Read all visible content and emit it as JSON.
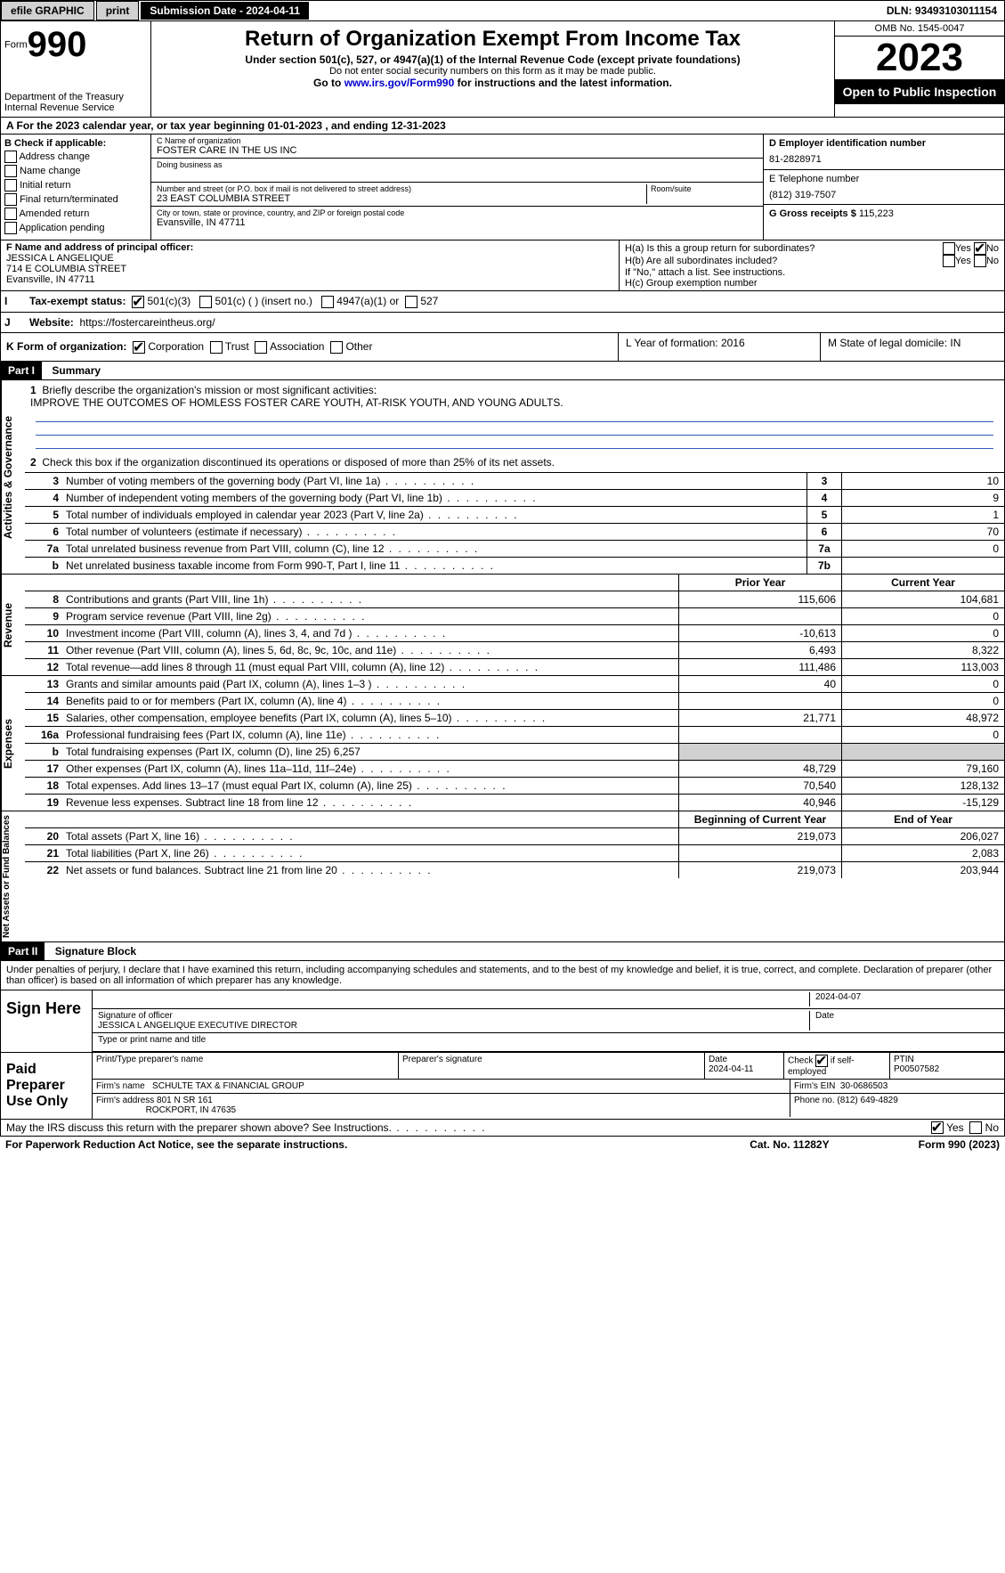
{
  "topbar": {
    "efile": "efile GRAPHIC",
    "print": "print",
    "submission": "Submission Date - 2024-04-11",
    "dln": "DLN: 93493103011154"
  },
  "header": {
    "form_word": "Form",
    "form_number": "990",
    "dept": "Department of the Treasury",
    "irs": "Internal Revenue Service",
    "title": "Return of Organization Exempt From Income Tax",
    "subtitle": "Under section 501(c), 527, or 4947(a)(1) of the Internal Revenue Code (except private foundations)",
    "note1": "Do not enter social security numbers on this form as it may be made public.",
    "note2_pre": "Go to ",
    "note2_link": "www.irs.gov/Form990",
    "note2_post": " for instructions and the latest information.",
    "omb": "OMB No. 1545-0047",
    "year": "2023",
    "open": "Open to Public Inspection"
  },
  "row_a": "A For the 2023 calendar year, or tax year beginning 01-01-2023    , and ending 12-31-2023",
  "section_b": {
    "title": "B Check if applicable:",
    "opts": [
      "Address change",
      "Name change",
      "Initial return",
      "Final return/terminated",
      "Amended return",
      "Application pending"
    ]
  },
  "section_c": {
    "name_label": "C Name of organization",
    "name": "FOSTER CARE IN THE US INC",
    "dba_label": "Doing business as",
    "addr_label": "Number and street (or P.O. box if mail is not delivered to street address)",
    "addr": "23 EAST COLUMBIA STREET",
    "room_label": "Room/suite",
    "city_label": "City or town, state or province, country, and ZIP or foreign postal code",
    "city": "Evansville, IN  47711"
  },
  "section_d": {
    "label": "D Employer identification number",
    "value": "81-2828971"
  },
  "section_e": {
    "label": "E Telephone number",
    "value": "(812) 319-7507"
  },
  "section_g": {
    "label": "G Gross receipts $",
    "value": "115,223"
  },
  "section_f": {
    "label": "F  Name and address of principal officer:",
    "name": "JESSICA L ANGELIQUE",
    "addr1": "714 E COLUMBIA STREET",
    "addr2": "Evansville, IN  47711"
  },
  "section_h": {
    "a": "H(a)  Is this a group return for subordinates?",
    "b": "H(b)  Are all subordinates included?",
    "b_note": "If \"No,\" attach a list. See instructions.",
    "c": "H(c)  Group exemption number",
    "yes": "Yes",
    "no": "No"
  },
  "row_i": {
    "label": "Tax-exempt status:",
    "opt1": "501(c)(3)",
    "opt2": "501(c) (  ) (insert no.)",
    "opt3": "4947(a)(1) or",
    "opt4": "527"
  },
  "row_j": {
    "label": "Website:",
    "value": "https://fostercareintheus.org/"
  },
  "row_k": {
    "label": "K Form of organization:",
    "opts": [
      "Corporation",
      "Trust",
      "Association",
      "Other"
    ],
    "l": "L Year of formation: 2016",
    "m": "M State of legal domicile: IN"
  },
  "part1": {
    "header": "Part I",
    "title": "Summary"
  },
  "governance": {
    "side": "Activities & Governance",
    "line1_label": "Briefly describe the organization's mission or most significant activities:",
    "line1_text": "IMPROVE THE OUTCOMES OF HOMLESS FOSTER CARE YOUTH, AT-RISK YOUTH, AND YOUNG ADULTS.",
    "line2": "Check this box       if the organization discontinued its operations or disposed of more than 25% of its net assets.",
    "rows": [
      {
        "n": "3",
        "d": "Number of voting members of the governing body (Part VI, line 1a)",
        "b": "3",
        "v": "10"
      },
      {
        "n": "4",
        "d": "Number of independent voting members of the governing body (Part VI, line 1b)",
        "b": "4",
        "v": "9"
      },
      {
        "n": "5",
        "d": "Total number of individuals employed in calendar year 2023 (Part V, line 2a)",
        "b": "5",
        "v": "1"
      },
      {
        "n": "6",
        "d": "Total number of volunteers (estimate if necessary)",
        "b": "6",
        "v": "70"
      },
      {
        "n": "7a",
        "d": "Total unrelated business revenue from Part VIII, column (C), line 12",
        "b": "7a",
        "v": "0"
      },
      {
        "n": "b",
        "d": "Net unrelated business taxable income from Form 990-T, Part I, line 11",
        "b": "7b",
        "v": ""
      }
    ]
  },
  "revenue": {
    "side": "Revenue",
    "header_prior": "Prior Year",
    "header_current": "Current Year",
    "rows": [
      {
        "n": "8",
        "d": "Contributions and grants (Part VIII, line 1h)",
        "p": "115,606",
        "c": "104,681"
      },
      {
        "n": "9",
        "d": "Program service revenue (Part VIII, line 2g)",
        "p": "",
        "c": "0"
      },
      {
        "n": "10",
        "d": "Investment income (Part VIII, column (A), lines 3, 4, and 7d )",
        "p": "-10,613",
        "c": "0"
      },
      {
        "n": "11",
        "d": "Other revenue (Part VIII, column (A), lines 5, 6d, 8c, 9c, 10c, and 11e)",
        "p": "6,493",
        "c": "8,322"
      },
      {
        "n": "12",
        "d": "Total revenue—add lines 8 through 11 (must equal Part VIII, column (A), line 12)",
        "p": "111,486",
        "c": "113,003"
      }
    ]
  },
  "expenses": {
    "side": "Expenses",
    "rows": [
      {
        "n": "13",
        "d": "Grants and similar amounts paid (Part IX, column (A), lines 1–3 )",
        "p": "40",
        "c": "0"
      },
      {
        "n": "14",
        "d": "Benefits paid to or for members (Part IX, column (A), line 4)",
        "p": "",
        "c": "0"
      },
      {
        "n": "15",
        "d": "Salaries, other compensation, employee benefits (Part IX, column (A), lines 5–10)",
        "p": "21,771",
        "c": "48,972"
      },
      {
        "n": "16a",
        "d": "Professional fundraising fees (Part IX, column (A), line 11e)",
        "p": "",
        "c": "0"
      },
      {
        "n": "b",
        "d": "Total fundraising expenses (Part IX, column (D), line 25) 6,257",
        "shade": true
      },
      {
        "n": "17",
        "d": "Other expenses (Part IX, column (A), lines 11a–11d, 11f–24e)",
        "p": "48,729",
        "c": "79,160"
      },
      {
        "n": "18",
        "d": "Total expenses. Add lines 13–17 (must equal Part IX, column (A), line 25)",
        "p": "70,540",
        "c": "128,132"
      },
      {
        "n": "19",
        "d": "Revenue less expenses. Subtract line 18 from line 12",
        "p": "40,946",
        "c": "-15,129"
      }
    ]
  },
  "netassets": {
    "side": "Net Assets or Fund Balances",
    "header_begin": "Beginning of Current Year",
    "header_end": "End of Year",
    "rows": [
      {
        "n": "20",
        "d": "Total assets (Part X, line 16)",
        "p": "219,073",
        "c": "206,027"
      },
      {
        "n": "21",
        "d": "Total liabilities (Part X, line 26)",
        "p": "",
        "c": "2,083"
      },
      {
        "n": "22",
        "d": "Net assets or fund balances. Subtract line 21 from line 20",
        "p": "219,073",
        "c": "203,944"
      }
    ]
  },
  "part2": {
    "header": "Part II",
    "title": "Signature Block"
  },
  "sig": {
    "declaration": "Under penalties of perjury, I declare that I have examined this return, including accompanying schedules and statements, and to the best of my knowledge and belief, it is true, correct, and complete. Declaration of preparer (other than officer) is based on all information of which preparer has any knowledge.",
    "sign_here": "Sign Here",
    "date1": "2024-04-07",
    "sig_officer": "Signature of officer",
    "officer_name": "JESSICA L ANGELIQUE  EXECUTIVE DIRECTOR",
    "type_name": "Type or print name and title",
    "date_label": "Date"
  },
  "paid": {
    "label": "Paid Preparer Use Only",
    "h1": "Print/Type preparer's name",
    "h2": "Preparer's signature",
    "h3": "Date",
    "date": "2024-04-11",
    "h4_pre": "Check",
    "h4_post": "if self-employed",
    "h5": "PTIN",
    "ptin": "P00507582",
    "firm_name_label": "Firm's name",
    "firm_name": "SCHULTE TAX & FINANCIAL GROUP",
    "firm_ein_label": "Firm's EIN",
    "firm_ein": "30-0686503",
    "firm_addr_label": "Firm's address",
    "firm_addr1": "801 N SR 161",
    "firm_addr2": "ROCKPORT, IN  47635",
    "phone_label": "Phone no.",
    "phone": "(812) 649-4829"
  },
  "footer": {
    "discuss": "May the IRS discuss this return with the preparer shown above? See Instructions.",
    "yes": "Yes",
    "no": "No",
    "paperwork": "For Paperwork Reduction Act Notice, see the separate instructions.",
    "cat": "Cat. No. 11282Y",
    "form": "Form 990 (2023)"
  }
}
